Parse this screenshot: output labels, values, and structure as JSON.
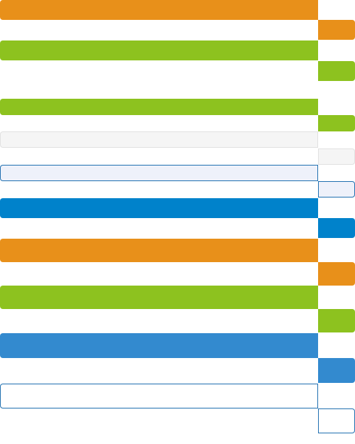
{
  "colors": {
    "orange": "#E8901A",
    "green": "#8DC21F",
    "light_gray": "#F5F5F5",
    "light_blue": "#EEF1FA",
    "blue": "#0082CB",
    "sky_blue": "#338ACF",
    "white": "#FFFFFF",
    "border_gray": "#E1E1E1",
    "border_blue": "#1F6FB0"
  },
  "bars": [
    {
      "name": "orange-bar-1",
      "color": "orange",
      "label": ""
    },
    {
      "name": "green-bar-1",
      "color": "green",
      "label": ""
    },
    {
      "name": "green-bar-2",
      "color": "green",
      "label": ""
    },
    {
      "name": "light-gray-field",
      "color": "light_gray",
      "label": ""
    },
    {
      "name": "light-blue-field",
      "color": "light_blue",
      "label": ""
    },
    {
      "name": "blue-bar",
      "color": "blue",
      "label": ""
    },
    {
      "name": "orange-bar-2",
      "color": "orange",
      "label": ""
    },
    {
      "name": "green-bar-3",
      "color": "green",
      "label": ""
    },
    {
      "name": "sky-blue-bar",
      "color": "sky_blue",
      "label": ""
    },
    {
      "name": "white-outlined-field",
      "color": "white",
      "label": ""
    }
  ]
}
